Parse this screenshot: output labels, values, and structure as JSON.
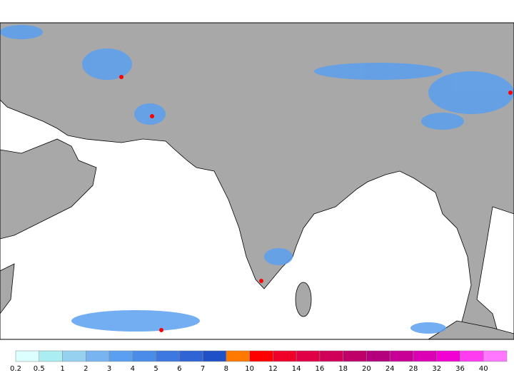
{
  "colorbar": {
    "ticks": [
      0.2,
      0.5,
      1,
      2,
      3,
      4,
      5,
      6,
      7,
      8,
      10,
      12,
      14,
      16,
      18,
      20,
      24,
      28,
      32,
      36,
      40
    ],
    "colors": [
      "#dcffff",
      "#aaeef2",
      "#96d2f0",
      "#78b4f0",
      "#5a9ff0",
      "#4a8ce8",
      "#3c78e0",
      "#2e64d4",
      "#2050c8",
      "#ff7800",
      "#ff0000",
      "#f00028",
      "#e00046",
      "#d00058",
      "#be0068",
      "#b4007c",
      "#c80096",
      "#dc00b4",
      "#f000d2",
      "#ff3cf0",
      "#ff78ff"
    ]
  }
}
